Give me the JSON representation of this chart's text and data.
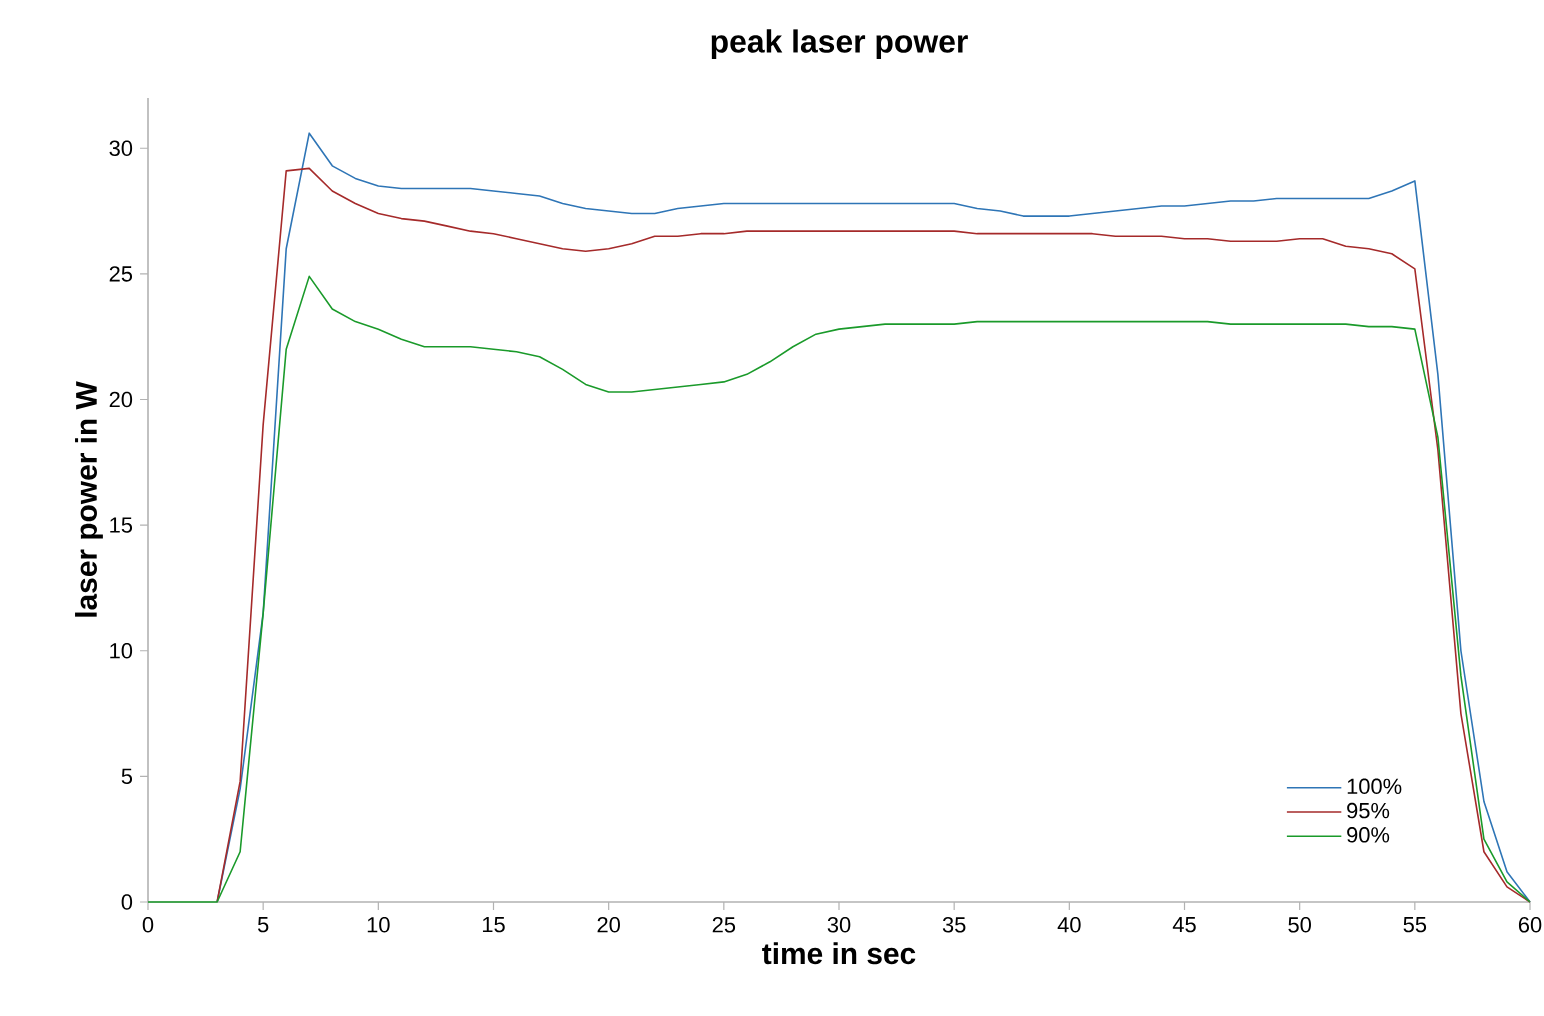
{
  "chart_data": {
    "type": "line",
    "title": "peak laser power",
    "xlabel": "time in sec",
    "ylabel": "laser power in W",
    "x": [
      0,
      1,
      2,
      3,
      4,
      5,
      6,
      7,
      8,
      9,
      10,
      11,
      12,
      13,
      14,
      15,
      16,
      17,
      18,
      19,
      20,
      21,
      22,
      23,
      24,
      25,
      26,
      27,
      28,
      29,
      30,
      31,
      32,
      33,
      34,
      35,
      36,
      37,
      38,
      39,
      40,
      41,
      42,
      43,
      44,
      45,
      46,
      47,
      48,
      49,
      50,
      51,
      52,
      53,
      54,
      55,
      56,
      57,
      58,
      59,
      60
    ],
    "xlim": [
      0,
      60
    ],
    "xticks": [
      0,
      5,
      10,
      15,
      20,
      25,
      30,
      35,
      40,
      45,
      50,
      55,
      60
    ],
    "ylim": [
      0,
      32
    ],
    "yticks": [
      0,
      5,
      10,
      15,
      20,
      25,
      30
    ],
    "legend": "bottom right",
    "grid": false,
    "marker": "none",
    "line_style": "solid",
    "series": [
      {
        "name": "100%",
        "color": "#2e75b6",
        "values": [
          null,
          null,
          null,
          0,
          4.5,
          11.5,
          26,
          30.6,
          29.3,
          28.8,
          28.5,
          28.4,
          28.4,
          28.4,
          28.4,
          28.3,
          28.2,
          28.1,
          27.8,
          27.6,
          27.5,
          27.4,
          27.4,
          27.6,
          27.7,
          27.8,
          27.8,
          27.8,
          27.8,
          27.8,
          27.8,
          27.8,
          27.8,
          27.8,
          27.8,
          27.8,
          27.6,
          27.5,
          27.3,
          27.3,
          27.3,
          27.4,
          27.5,
          27.6,
          27.7,
          27.7,
          27.8,
          27.9,
          27.9,
          28.0,
          28.0,
          28.0,
          28.0,
          28.0,
          28.3,
          28.7,
          21,
          10,
          4,
          1.2,
          0
        ]
      },
      {
        "name": "95%",
        "color": "#a52a2a",
        "values": [
          null,
          null,
          null,
          0,
          4.8,
          19,
          29.1,
          29.2,
          28.3,
          27.8,
          27.4,
          27.2,
          27.1,
          26.9,
          26.7,
          26.6,
          26.4,
          26.2,
          26.0,
          25.9,
          26.0,
          26.2,
          26.5,
          26.5,
          26.6,
          26.6,
          26.7,
          26.7,
          26.7,
          26.7,
          26.7,
          26.7,
          26.7,
          26.7,
          26.7,
          26.7,
          26.6,
          26.6,
          26.6,
          26.6,
          26.6,
          26.6,
          26.5,
          26.5,
          26.5,
          26.4,
          26.4,
          26.3,
          26.3,
          26.3,
          26.4,
          26.4,
          26.1,
          26.0,
          25.8,
          25.2,
          18,
          7.5,
          2,
          0.6,
          0
        ]
      },
      {
        "name": "90%",
        "color": "#1a9a2a",
        "values": [
          0,
          0,
          0,
          0,
          2,
          11.5,
          22,
          24.9,
          23.6,
          23.1,
          22.8,
          22.4,
          22.1,
          22.1,
          22.1,
          22.0,
          21.9,
          21.7,
          21.2,
          20.6,
          20.3,
          20.3,
          20.4,
          20.5,
          20.6,
          20.7,
          21.0,
          21.5,
          22.1,
          22.6,
          22.8,
          22.9,
          23.0,
          23.0,
          23.0,
          23.0,
          23.1,
          23.1,
          23.1,
          23.1,
          23.1,
          23.1,
          23.1,
          23.1,
          23.1,
          23.1,
          23.1,
          23.0,
          23.0,
          23.0,
          23.0,
          23.0,
          23.0,
          22.9,
          22.9,
          22.8,
          18.5,
          9,
          2.5,
          0.8,
          0
        ]
      }
    ]
  }
}
